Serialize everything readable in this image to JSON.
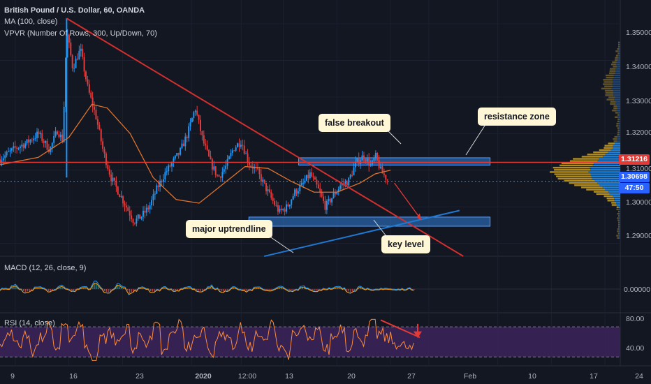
{
  "header": {
    "title": "British Pound / U.S. Dollar, 60, OANDA",
    "ma_label": "MA (100, close)",
    "vpvr_label": "VPVR (Number Of Rows, 300, Up/Down, 70)"
  },
  "annotations": {
    "false_breakout": "false breakout",
    "resistance_zone": "resistance zone",
    "major_uptrendline": "major uptrendline",
    "key_level": "key level"
  },
  "price_tags": {
    "red_level": "1.31216",
    "last_price": "1.30698",
    "countdown": "47:50"
  },
  "colors": {
    "background": "#131722",
    "candle_up": "#2196f3",
    "candle_down": "#e03c3c",
    "ma": "#e0742d",
    "trendline": "#d32f2f",
    "uptrend": "#1f78d1",
    "zone": "#2f7fd8",
    "rsi_band": "#3b2358"
  },
  "chart_data": [
    {
      "type": "candlestick",
      "title": "British Pound / U.S. Dollar, 60, OANDA",
      "y_ticks": [
        1.29,
        1.3,
        1.31,
        1.32,
        1.33,
        1.34,
        1.35
      ],
      "y_tick_labels": [
        "1.29000",
        "1.30000",
        "1.31000",
        "1.32000",
        "1.33000",
        "1.34000",
        "1.35000"
      ],
      "ylim": [
        1.2865,
        1.3565
      ],
      "x_tick_labels": [
        "9",
        "16",
        "23",
        "2020",
        "12:00",
        "13",
        "20",
        "27",
        "Feb",
        "10",
        "17",
        "24"
      ],
      "x_tick_days": [
        0,
        7,
        14,
        23,
        29.5,
        35,
        42,
        49,
        54,
        63,
        70,
        77
      ],
      "x_range_days": [
        -2,
        79
      ],
      "close_path": [
        {
          "day": -2,
          "price": 1.313
        },
        {
          "day": 0,
          "price": 1.316
        },
        {
          "day": 1.5,
          "price": 1.3175
        },
        {
          "day": 3,
          "price": 1.32
        },
        {
          "day": 4.5,
          "price": 1.3155
        },
        {
          "day": 5.5,
          "price": 1.321
        },
        {
          "day": 6.2,
          "price": 1.318
        },
        {
          "day": 6.7,
          "price": 1.348
        },
        {
          "day": 7.5,
          "price": 1.338
        },
        {
          "day": 8.5,
          "price": 1.343
        },
        {
          "day": 9.5,
          "price": 1.332
        },
        {
          "day": 10.5,
          "price": 1.325
        },
        {
          "day": 11.5,
          "price": 1.315
        },
        {
          "day": 12.5,
          "price": 1.308
        },
        {
          "day": 13.5,
          "price": 1.304
        },
        {
          "day": 14.5,
          "price": 1.3
        },
        {
          "day": 15.5,
          "price": 1.296
        },
        {
          "day": 16.5,
          "price": 1.2975
        },
        {
          "day": 17.5,
          "price": 1.3
        },
        {
          "day": 18.5,
          "price": 1.305
        },
        {
          "day": 19.5,
          "price": 1.309
        },
        {
          "day": 20.5,
          "price": 1.312
        },
        {
          "day": 21.5,
          "price": 1.315
        },
        {
          "day": 22.5,
          "price": 1.32
        },
        {
          "day": 23.5,
          "price": 1.327
        },
        {
          "day": 24.5,
          "price": 1.318
        },
        {
          "day": 25.5,
          "price": 1.312
        },
        {
          "day": 26.5,
          "price": 1.308
        },
        {
          "day": 27.5,
          "price": 1.311
        },
        {
          "day": 28.5,
          "price": 1.316
        },
        {
          "day": 29.5,
          "price": 1.318
        },
        {
          "day": 30.5,
          "price": 1.312
        },
        {
          "day": 31.5,
          "price": 1.31
        },
        {
          "day": 32.5,
          "price": 1.306
        },
        {
          "day": 33.5,
          "price": 1.302
        },
        {
          "day": 34.5,
          "price": 1.2985
        },
        {
          "day": 35.5,
          "price": 1.3
        },
        {
          "day": 36.5,
          "price": 1.304
        },
        {
          "day": 37.5,
          "price": 1.306
        },
        {
          "day": 38.5,
          "price": 1.309
        },
        {
          "day": 39.5,
          "price": 1.305
        },
        {
          "day": 40.5,
          "price": 1.3
        },
        {
          "day": 41.5,
          "price": 1.303
        },
        {
          "day": 42.5,
          "price": 1.306
        },
        {
          "day": 43.5,
          "price": 1.307
        },
        {
          "day": 44.5,
          "price": 1.312
        },
        {
          "day": 45.5,
          "price": 1.314
        },
        {
          "day": 46.5,
          "price": 1.311
        },
        {
          "day": 47,
          "price": 1.314
        },
        {
          "day": 47.8,
          "price": 1.3095
        },
        {
          "day": 48.8,
          "price": 1.307
        }
      ],
      "ma_path": [
        {
          "day": -2,
          "price": 1.3115
        },
        {
          "day": 3,
          "price": 1.3135
        },
        {
          "day": 7,
          "price": 1.319
        },
        {
          "day": 10,
          "price": 1.328
        },
        {
          "day": 12,
          "price": 1.327
        },
        {
          "day": 15,
          "price": 1.32
        },
        {
          "day": 18,
          "price": 1.308
        },
        {
          "day": 21,
          "price": 1.302
        },
        {
          "day": 24,
          "price": 1.301
        },
        {
          "day": 27,
          "price": 1.306
        },
        {
          "day": 30,
          "price": 1.311
        },
        {
          "day": 33,
          "price": 1.3105
        },
        {
          "day": 36,
          "price": 1.307
        },
        {
          "day": 39,
          "price": 1.304
        },
        {
          "day": 42,
          "price": 1.304
        },
        {
          "day": 45,
          "price": 1.3065
        },
        {
          "day": 47,
          "price": 1.309
        },
        {
          "day": 49,
          "price": 1.31
        }
      ],
      "horizontal_levels": [
        1.31216,
        1.30698
      ],
      "zones": [
        {
          "from_day": 37,
          "to_day": 62,
          "low": 1.3114,
          "high": 1.3134
        },
        {
          "from_day": 30.5,
          "to_day": 62,
          "low": 1.2947,
          "high": 1.2972
        }
      ],
      "trendlines": [
        {
          "name": "descending",
          "from": {
            "day": 6.7,
            "price": 1.3515
          },
          "to": {
            "day": 58.5,
            "price": 1.2865
          }
        },
        {
          "name": "uptrend",
          "from": {
            "day": 32.5,
            "price": 1.2865
          },
          "to": {
            "day": 58,
            "price": 1.299
          }
        }
      ],
      "projection_arrow": {
        "from": {
          "day": 49.5,
          "price": 1.3065
        },
        "to": {
          "day": 53,
          "price": 1.2965
        }
      }
    },
    {
      "type": "line",
      "title": "MACD (12, 26, close, 9)",
      "y_ticks": [
        0.0
      ],
      "y_tick_labels": [
        "0.00000"
      ],
      "series": [
        {
          "values": [
            0.0,
            0.8,
            -0.6,
            0.5,
            -0.4,
            0.6,
            -0.5,
            0.4,
            1.4,
            -0.8,
            0.9,
            -0.9,
            0.5,
            -0.6,
            0.4,
            -0.3,
            0.5,
            -0.4,
            0.6,
            -0.7,
            0.5,
            -0.4,
            0.3,
            -0.2,
            0.4,
            -0.5,
            0.6,
            -0.4,
            0.2,
            0.4,
            -0.6,
            0.5,
            -0.3,
            0.2,
            -0.1,
            0.1
          ]
        }
      ]
    },
    {
      "type": "line",
      "title": "RSI (14, close)",
      "y_ticks": [
        40,
        80
      ],
      "y_tick_labels": [
        "40.00",
        "80.00"
      ],
      "bands": [
        30,
        70
      ],
      "ylim": [
        20,
        85
      ],
      "series": [
        {
          "values": [
            52,
            60,
            45,
            62,
            38,
            55,
            70,
            42,
            66,
            58,
            75,
            40,
            30,
            55,
            62,
            48,
            67,
            42,
            58,
            50,
            69,
            36,
            60,
            73,
            44,
            52,
            64,
            38,
            55,
            61,
            47,
            68,
            41,
            59,
            50,
            72,
            46,
            35,
            58,
            66,
            49,
            63,
            39,
            57,
            70,
            45,
            62,
            52,
            76,
            60,
            55,
            49,
            44,
            40
          ]
        }
      ]
    }
  ]
}
